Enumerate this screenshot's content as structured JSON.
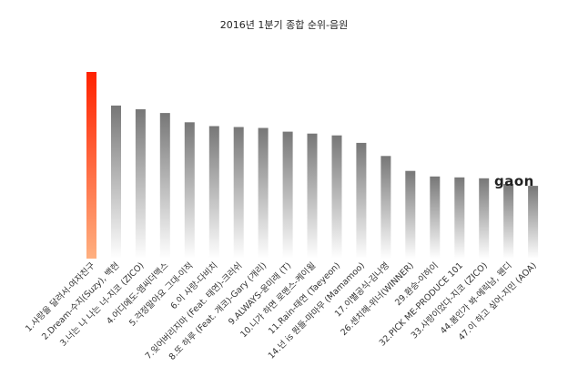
{
  "chart_data": {
    "type": "bar",
    "title": "2016년 1분기 종합 순위-음원",
    "categories": [
      "1.사랑을 달려서-여자친구",
      "2.Dream-수지(Suzy), 백현",
      "3.너는 나 나는 너-지코 (ZICO)",
      "4.어디에도-엠씨더맥스",
      "5.걱정말아요 그대-이적",
      "6.이 사랑-다비치",
      "7.잊어버리지마 (Feat. 태연)-크러쉬",
      "8.또 하루 (Feat. 개코)-Gary (개리)",
      "9.ALWAYS-윤미래 (T)",
      "10.니가 하면 로맨스-케이윌",
      "11.Rain-태연 (Taeyeon)",
      "14.넌 is 뭔들-마마무 (Mamamoo)",
      "17.이별공식-김나영",
      "26.센치해-위너(WINNER)",
      "29.환승-이하이",
      "32.PICK ME-PRODUCE 101",
      "33.사랑이었다-지코 (ZICO)",
      "44.봄인가 봐-에릭남, 웬디",
      "47.이 하고 싶어-지민 (AOA)"
    ],
    "values": [
      100,
      82,
      80,
      78,
      73,
      71,
      70.5,
      70,
      68,
      67,
      66,
      62,
      55,
      47,
      44,
      43.5,
      43,
      40,
      39
    ],
    "ylim": [
      0,
      100
    ],
    "grid": false,
    "legend": "none",
    "colors": {
      "highlight_top": "#ff2200",
      "highlight_bottom": "#ffb080",
      "bar_top": "#777777",
      "bar_bottom": "#ffffff"
    }
  },
  "logo": {
    "text": "gaon"
  }
}
